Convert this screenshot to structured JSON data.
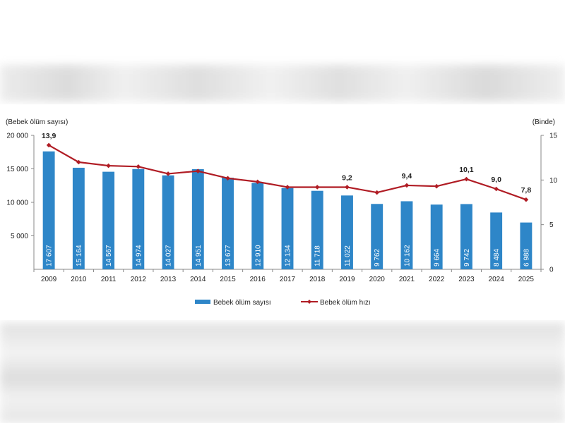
{
  "chart_data": {
    "type": "bar",
    "categories": [
      "2009",
      "2010",
      "2011",
      "2012",
      "2013",
      "2014",
      "2015",
      "2016",
      "2017",
      "2018",
      "2019",
      "2020",
      "2021",
      "2022",
      "2023",
      "2024",
      "2025"
    ],
    "series": [
      {
        "name": "Bebek ölüm sayısı",
        "type": "bar",
        "axis": "left",
        "color": "#2e86c8",
        "values": [
          17607,
          15164,
          14567,
          14974,
          14027,
          14951,
          13677,
          12910,
          12134,
          11718,
          11022,
          9762,
          10162,
          9664,
          9742,
          8484,
          6988
        ],
        "labels": [
          "17 607",
          "15 164",
          "14 567",
          "14 974",
          "14 027",
          "14 951",
          "13 677",
          "12 910",
          "12 134",
          "11 718",
          "11 022",
          "9 762",
          "10 162",
          "9 664",
          "9 742",
          "8 484",
          "6 988"
        ]
      },
      {
        "name": "Bebek ölüm hızı",
        "type": "line",
        "axis": "right",
        "color": "#b01c24",
        "values": [
          13.9,
          12.0,
          11.6,
          11.5,
          10.7,
          11.0,
          10.2,
          9.8,
          9.2,
          9.2,
          9.2,
          8.6,
          9.4,
          9.3,
          10.1,
          9.0,
          7.8
        ],
        "point_labels": {
          "0": "13,9",
          "10": "9,2",
          "12": "9,4",
          "14": "10,1",
          "15": "9,0",
          "16": "7,8"
        }
      }
    ],
    "left_axis": {
      "title": "(Bebek ölüm sayısı)",
      "ylim": [
        0,
        20000
      ],
      "ticks": [
        5000,
        10000,
        15000,
        20000
      ],
      "tick_labels": [
        "5 000",
        "10 000",
        "15 000",
        "20 000"
      ]
    },
    "right_axis": {
      "title": "(Binde)",
      "ylim": [
        0,
        15
      ],
      "ticks": [
        0,
        5,
        10,
        15
      ],
      "tick_labels": [
        "0",
        "5",
        "10",
        "15"
      ]
    },
    "grid": false,
    "legend_position": "bottom"
  }
}
